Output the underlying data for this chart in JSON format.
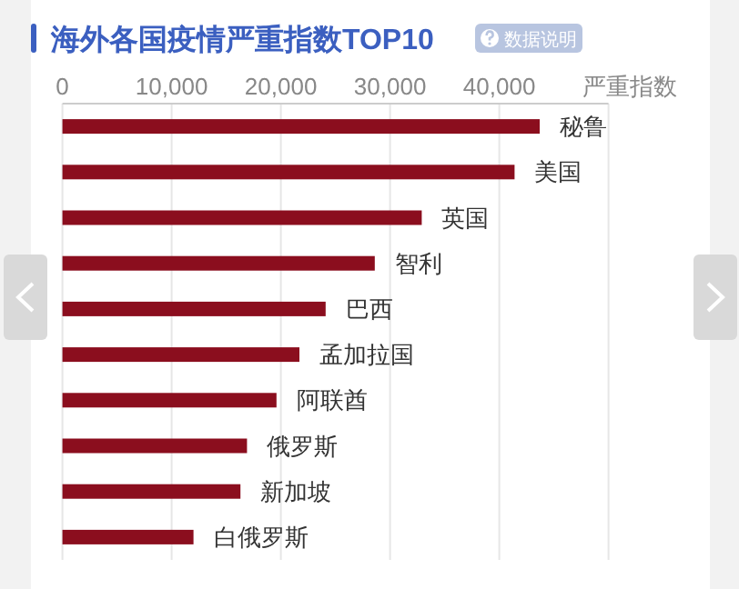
{
  "chart_data": {
    "type": "bar",
    "orientation": "horizontal",
    "title": "海外各国疫情严重指数TOP10",
    "xlabel": "严重指数",
    "annotations": [
      "数据说明"
    ],
    "categories": [
      "秘鲁",
      "美国",
      "英国",
      "智利",
      "巴西",
      "孟加拉国",
      "阿联酋",
      "俄罗斯",
      "新加坡",
      "白俄罗斯"
    ],
    "values": [
      43700,
      41400,
      32900,
      28600,
      24100,
      21700,
      19600,
      16900,
      16300,
      12000
    ],
    "color": "#8b0e1e",
    "xlim": [
      0,
      50000
    ],
    "xticks": [
      {
        "value": 0,
        "label": "0"
      },
      {
        "value": 10000,
        "label": "10,000"
      },
      {
        "value": 20000,
        "label": "20,000"
      },
      {
        "value": 30000,
        "label": "30,000"
      },
      {
        "value": 40000,
        "label": "40,000"
      },
      {
        "value": 50000,
        "label": null
      }
    ],
    "grid": "x"
  }
}
